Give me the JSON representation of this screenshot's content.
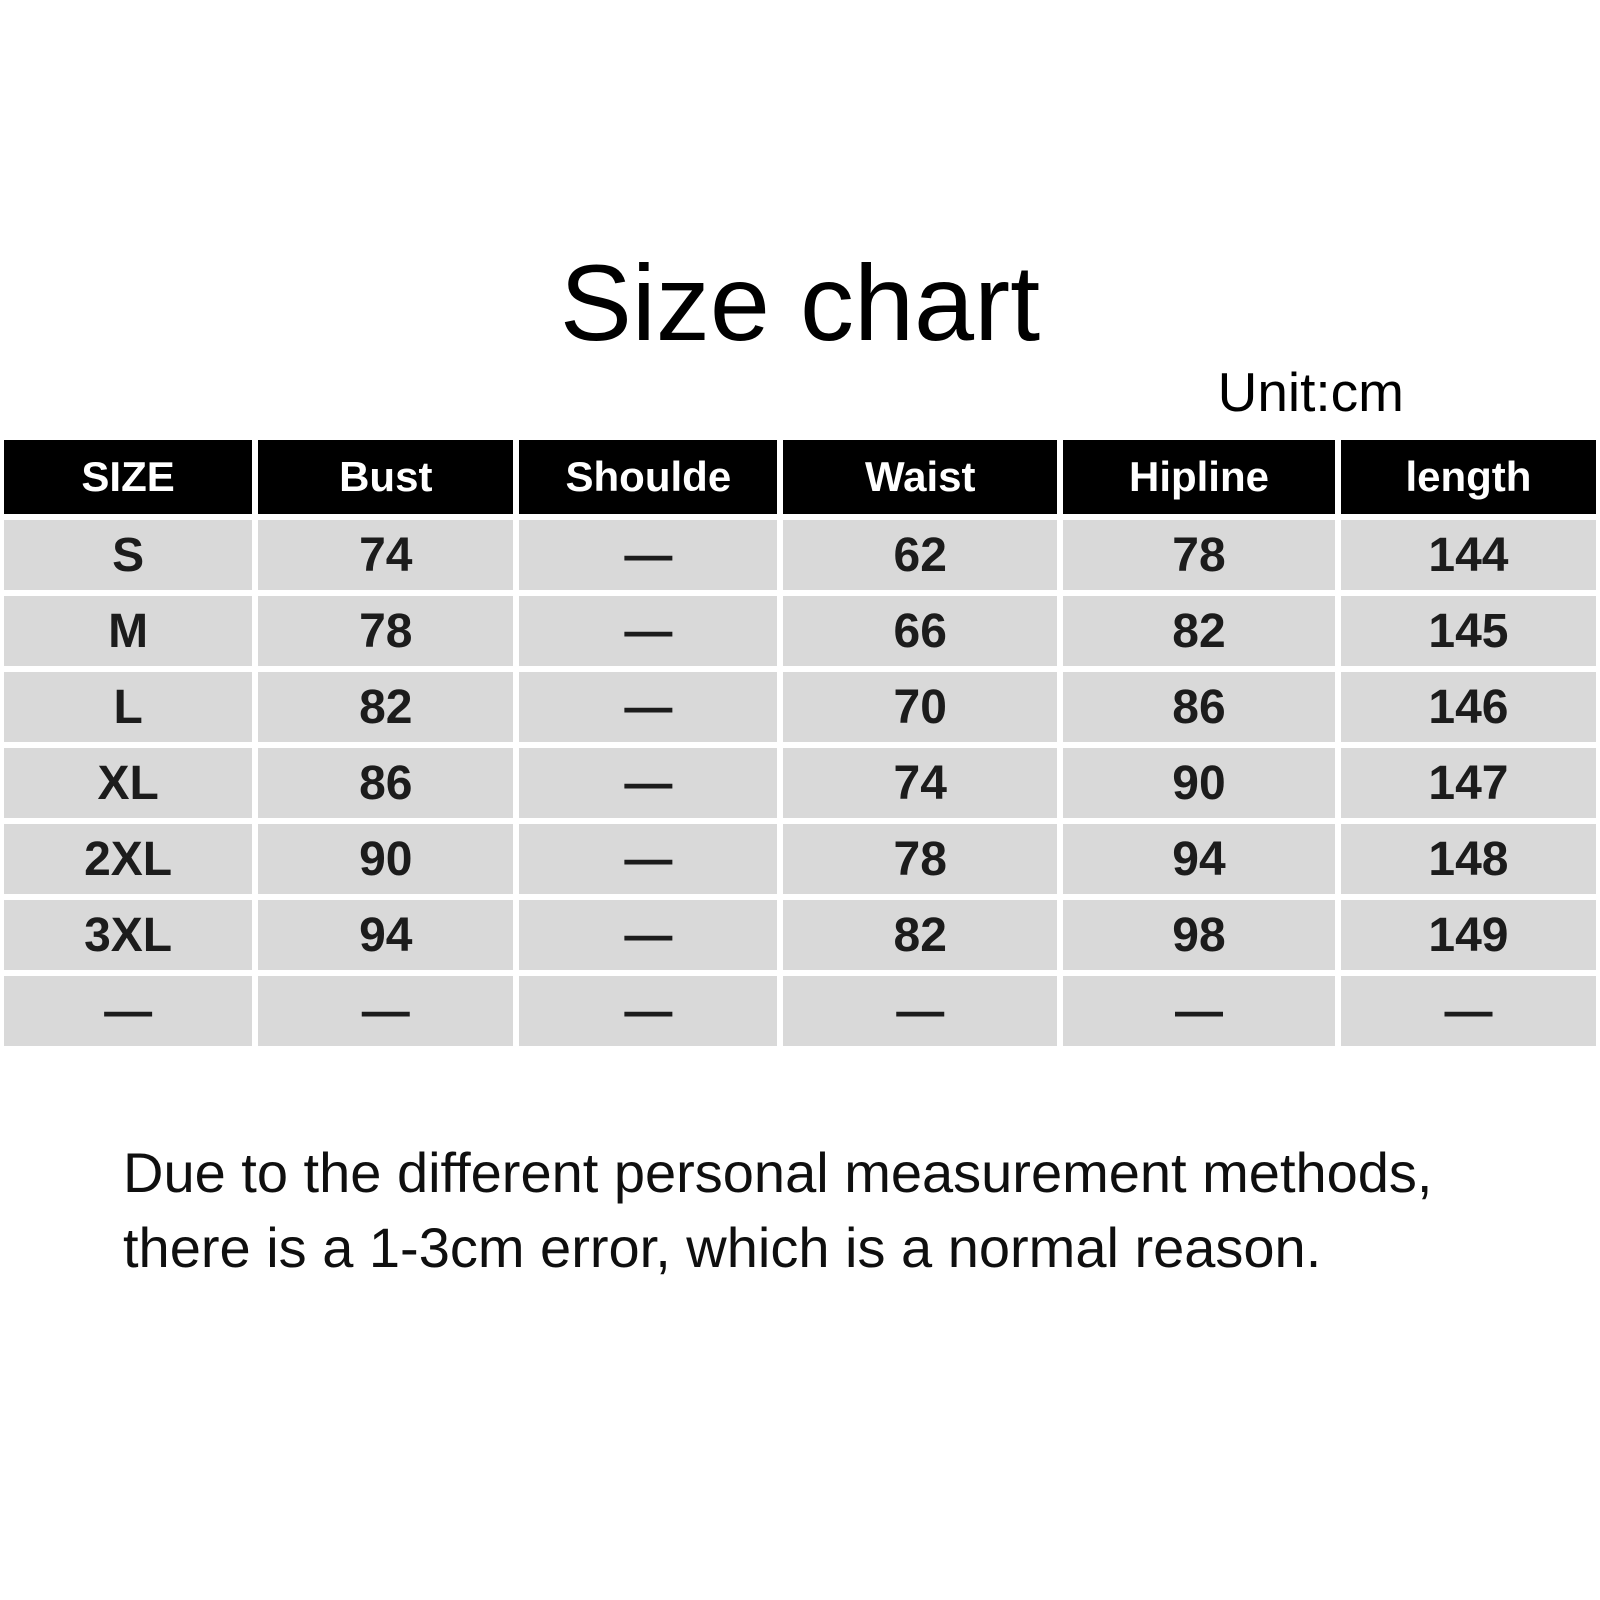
{
  "page": {
    "background": "#ffffff"
  },
  "title": "Size chart",
  "unit_label": "Unit:cm",
  "table": {
    "headers": [
      "SIZE",
      "Bust",
      "Shoulde",
      "Waist",
      "Hipline",
      "length"
    ],
    "rows": [
      [
        "S",
        "74",
        "—",
        "62",
        "78",
        "144"
      ],
      [
        "M",
        "78",
        "—",
        "66",
        "82",
        "145"
      ],
      [
        "L",
        "82",
        "—",
        "70",
        "86",
        "146"
      ],
      [
        "XL",
        "86",
        "—",
        "74",
        "90",
        "147"
      ],
      [
        "2XL",
        "90",
        "—",
        "78",
        "94",
        "148"
      ],
      [
        "3XL",
        "94",
        "—",
        "82",
        "98",
        "149"
      ],
      [
        "—",
        "—",
        "—",
        "—",
        "—",
        "—"
      ]
    ],
    "colors": {
      "header_bg": "#000000",
      "header_text": "#ffffff",
      "row_bg": "#d9d9d9",
      "cell_text": "#1c1c1c"
    }
  },
  "note": {
    "lines": [
      "Due to the different personal measurement methods,",
      "there is a 1-3cm error, which is a normal reason."
    ]
  }
}
